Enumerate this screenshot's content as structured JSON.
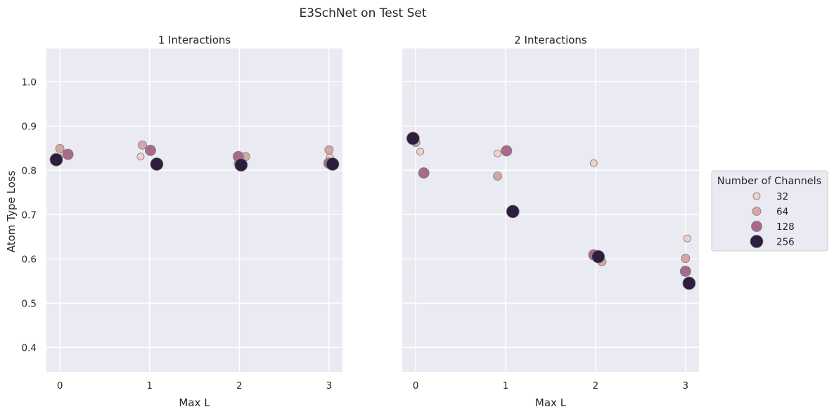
{
  "title": "E3SchNet on Test Set",
  "ylabel": "Atom Type Loss",
  "legend": {
    "title": "Number of Channels",
    "placement": "right",
    "entries": [
      "32",
      "64",
      "128",
      "256"
    ],
    "colors": [
      "#efd2cb",
      "#d4a6a5",
      "#a86a8b",
      "#2d1e3e"
    ]
  },
  "chart_data": [
    {
      "type": "scatter",
      "title": "1 Interactions",
      "xlabel": "Max L",
      "ylabel": "Atom Type Loss",
      "x_ticks": [
        "0",
        "1",
        "2",
        "3"
      ],
      "y_ticks": [
        "0.4",
        "0.5",
        "0.6",
        "0.7",
        "0.8",
        "0.9",
        "1.0"
      ],
      "xlim": [
        -0.15,
        3.15
      ],
      "ylim": [
        0.345,
        1.075
      ],
      "grid": true,
      "series": [
        {
          "name": "32",
          "x": [
            0.05,
            0.9,
            1.98,
            3.01
          ],
          "y": [
            0.837,
            0.831,
            0.816,
            0.829
          ]
        },
        {
          "name": "64",
          "x": [
            0.0,
            0.92,
            2.07,
            3.0
          ],
          "y": [
            0.849,
            0.857,
            0.831,
            0.846
          ]
        },
        {
          "name": "128",
          "x": [
            0.09,
            1.01,
            1.99,
            3.0
          ],
          "y": [
            0.836,
            0.845,
            0.831,
            0.816
          ]
        },
        {
          "name": "256",
          "x": [
            -0.04,
            1.08,
            2.02,
            3.04
          ],
          "y": [
            0.824,
            0.814,
            0.812,
            0.814
          ]
        }
      ]
    },
    {
      "type": "scatter",
      "title": "2 Interactions",
      "xlabel": "Max L",
      "ylabel": "",
      "x_ticks": [
        "0",
        "1",
        "2",
        "3"
      ],
      "y_ticks": [],
      "xlim": [
        -0.15,
        3.15
      ],
      "ylim": [
        0.345,
        1.075
      ],
      "grid": true,
      "series": [
        {
          "name": "32",
          "x": [
            0.05,
            0.91,
            1.98,
            3.02
          ],
          "y": [
            0.842,
            0.838,
            0.816,
            0.646
          ]
        },
        {
          "name": "64",
          "x": [
            0.0,
            0.91,
            2.07,
            3.0
          ],
          "y": [
            0.863,
            0.787,
            0.594,
            0.601
          ]
        },
        {
          "name": "128",
          "x": [
            0.09,
            1.01,
            1.98,
            3.0
          ],
          "y": [
            0.794,
            0.844,
            0.609,
            0.572
          ]
        },
        {
          "name": "256",
          "x": [
            -0.03,
            1.08,
            2.03,
            3.04
          ],
          "y": [
            0.872,
            0.707,
            0.605,
            0.545
          ]
        }
      ]
    }
  ]
}
